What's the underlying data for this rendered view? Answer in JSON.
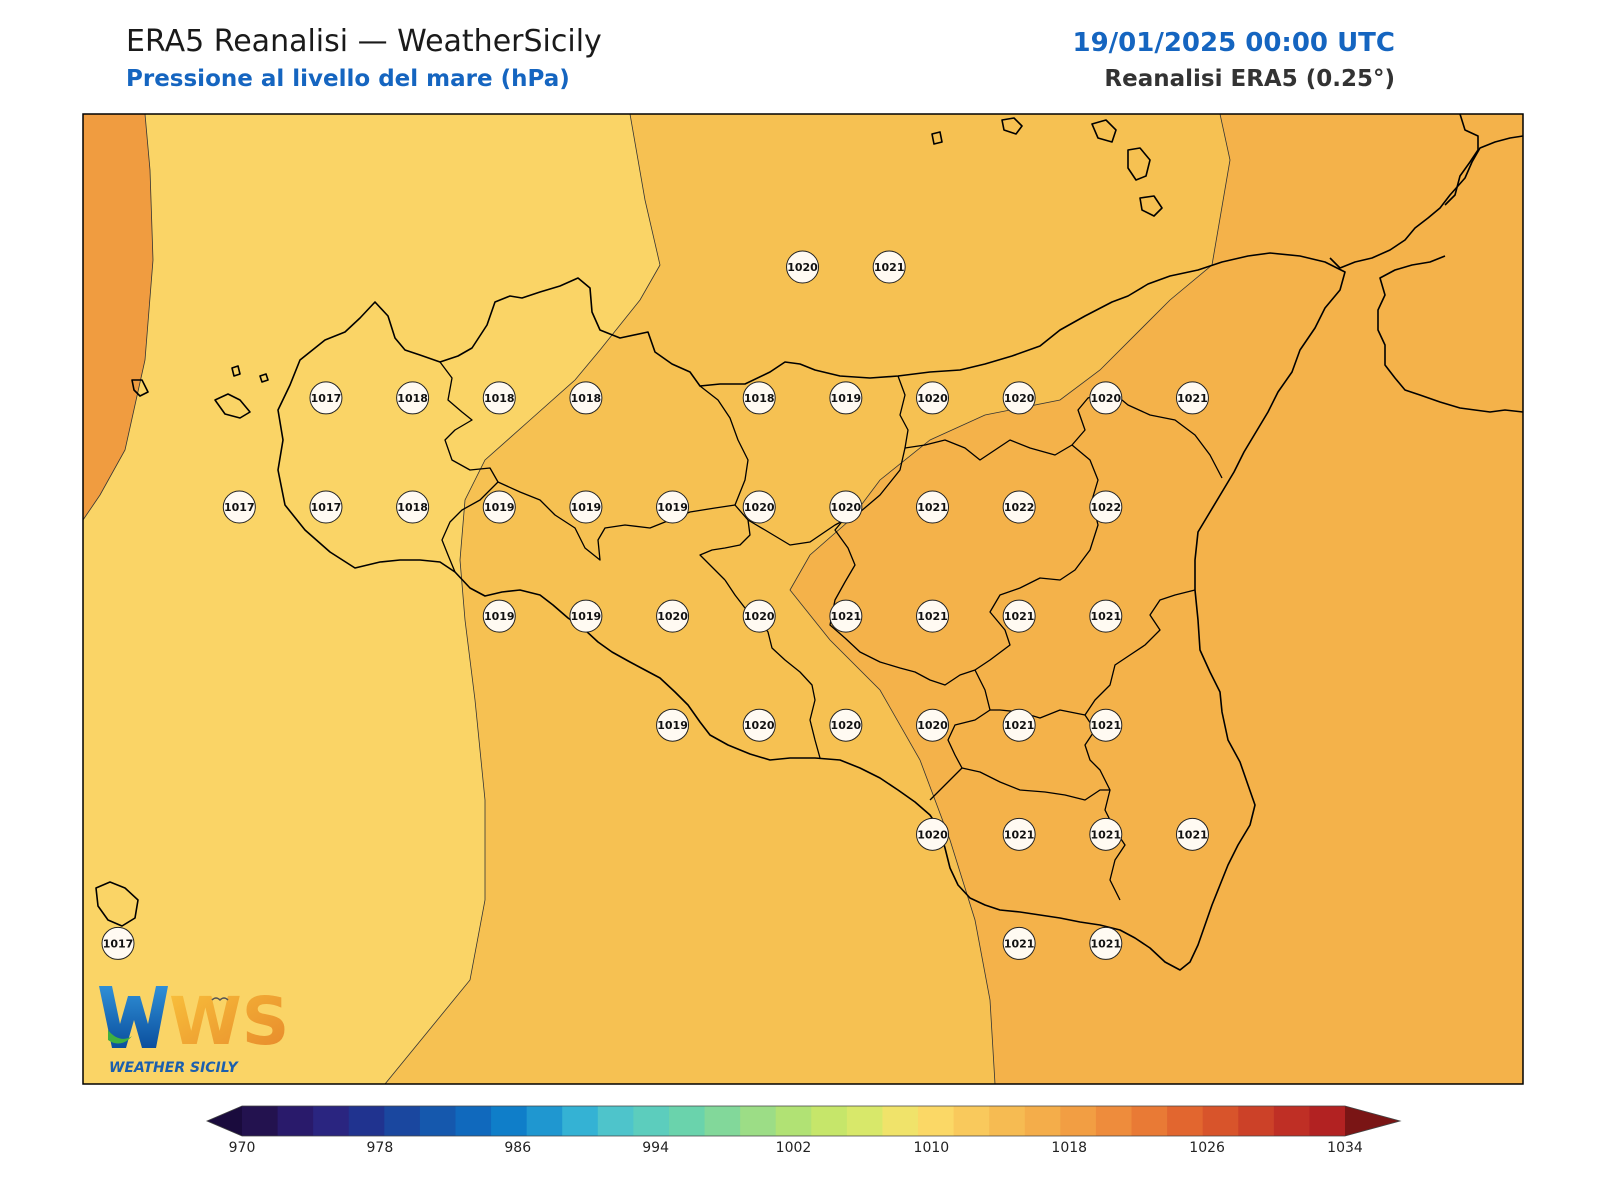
{
  "header": {
    "title": "ERA5 Reanalisi — WeatherSicily",
    "subtitle": "Pressione al livello del mare (hPa)",
    "datetime": "19/01/2025 00:00 UTC",
    "source": "Reanalisi ERA5 (0.25°)"
  },
  "logo": {
    "initials": "WS",
    "name": "WEATHER SICILY"
  },
  "colorbar": {
    "min": 970,
    "max": 1034,
    "step": 2,
    "tick_labels": [
      "970",
      "978",
      "986",
      "994",
      "1002",
      "1010",
      "1018",
      "1026",
      "1034"
    ],
    "colors": [
      "#23124f",
      "#291a6b",
      "#2a2580",
      "#20338f",
      "#1a479f",
      "#1558ad",
      "#1069bd",
      "#0f7ec9",
      "#1f97d0",
      "#34b2d4",
      "#4ec4cb",
      "#5ccdbd",
      "#6ad3ac",
      "#82d89a",
      "#9cdd86",
      "#b1e274",
      "#c6e66a",
      "#d8e86a",
      "#f0e36a",
      "#fbd866",
      "#f9c95c",
      "#f6bb52",
      "#f4ad4a",
      "#f29e43",
      "#ee8c3c",
      "#e97a35",
      "#e2662f",
      "#d8542b",
      "#cc4128",
      "#bf2f25",
      "#b22222"
    ],
    "under_color": "#1a0b3d",
    "over_color": "#7a1515"
  },
  "pressure_fields": [
    {
      "level": "1016-1017",
      "color": "#fad466"
    },
    {
      "level": "1017-1018",
      "color": "#f6c152"
    },
    {
      "level": "1018-1020",
      "color": "#f4b24a"
    },
    {
      "level": "1020-1022",
      "color": "#f09c40"
    }
  ],
  "stations": [
    {
      "value": "1020",
      "lon": 15.25,
      "lat": 38.55
    },
    {
      "value": "1021",
      "lon": 15.75,
      "lat": 38.55
    },
    {
      "value": "1017",
      "lon": 12.5,
      "lat": 37.95
    },
    {
      "value": "1018",
      "lon": 13.0,
      "lat": 37.95
    },
    {
      "value": "1018",
      "lon": 13.5,
      "lat": 37.95
    },
    {
      "value": "1018",
      "lon": 14.0,
      "lat": 37.95
    },
    {
      "value": "1018",
      "lon": 15.0,
      "lat": 37.95
    },
    {
      "value": "1019",
      "lon": 15.5,
      "lat": 37.95
    },
    {
      "value": "1020",
      "lon": 16.0,
      "lat": 37.95
    },
    {
      "value": "1020",
      "lon": 16.5,
      "lat": 37.95
    },
    {
      "value": "1020",
      "lon": 17.0,
      "lat": 37.95
    },
    {
      "value": "1021",
      "lon": 17.5,
      "lat": 37.95
    },
    {
      "value": "1017",
      "lon": 12.0,
      "lat": 37.45
    },
    {
      "value": "1017",
      "lon": 12.5,
      "lat": 37.45
    },
    {
      "value": "1018",
      "lon": 13.0,
      "lat": 37.45
    },
    {
      "value": "1019",
      "lon": 13.5,
      "lat": 37.45
    },
    {
      "value": "1019",
      "lon": 14.0,
      "lat": 37.45
    },
    {
      "value": "1019",
      "lon": 14.5,
      "lat": 37.45
    },
    {
      "value": "1020",
      "lon": 15.0,
      "lat": 37.45
    },
    {
      "value": "1020",
      "lon": 15.5,
      "lat": 37.45
    },
    {
      "value": "1021",
      "lon": 16.0,
      "lat": 37.45
    },
    {
      "value": "1022",
      "lon": 16.5,
      "lat": 37.45
    },
    {
      "value": "1022",
      "lon": 17.0,
      "lat": 37.45
    },
    {
      "value": "1019",
      "lon": 13.5,
      "lat": 36.95
    },
    {
      "value": "1019",
      "lon": 14.0,
      "lat": 36.95
    },
    {
      "value": "1020",
      "lon": 14.5,
      "lat": 36.95
    },
    {
      "value": "1020",
      "lon": 15.0,
      "lat": 36.95
    },
    {
      "value": "1021",
      "lon": 15.5,
      "lat": 36.95
    },
    {
      "value": "1021",
      "lon": 16.0,
      "lat": 36.95
    },
    {
      "value": "1021",
      "lon": 16.5,
      "lat": 36.95
    },
    {
      "value": "1021",
      "lon": 17.0,
      "lat": 36.95
    },
    {
      "value": "1019",
      "lon": 14.5,
      "lat": 36.45
    },
    {
      "value": "1020",
      "lon": 15.0,
      "lat": 36.45
    },
    {
      "value": "1020",
      "lon": 15.5,
      "lat": 36.45
    },
    {
      "value": "1020",
      "lon": 16.0,
      "lat": 36.45
    },
    {
      "value": "1021",
      "lon": 16.5,
      "lat": 36.45
    },
    {
      "value": "1021",
      "lon": 17.0,
      "lat": 36.45
    },
    {
      "value": "1020",
      "lon": 16.0,
      "lat": 35.95
    },
    {
      "value": "1021",
      "lon": 16.5,
      "lat": 35.95
    },
    {
      "value": "1021",
      "lon": 17.0,
      "lat": 35.95
    },
    {
      "value": "1021",
      "lon": 17.5,
      "lat": 35.95
    },
    {
      "value": "1021",
      "lon": 16.5,
      "lat": 35.45
    },
    {
      "value": "1021",
      "lon": 17.0,
      "lat": 35.45
    },
    {
      "value": "1017",
      "lon": 11.3,
      "lat": 35.45
    }
  ]
}
